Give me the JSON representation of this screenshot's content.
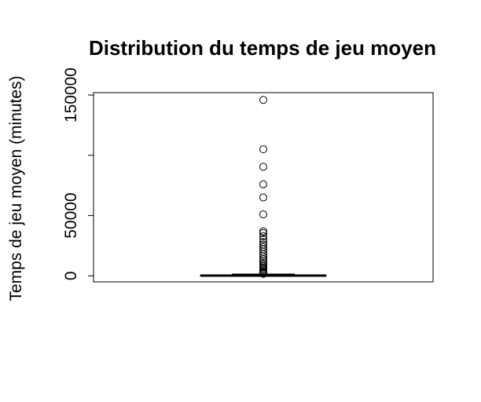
{
  "chart_data": {
    "type": "boxplot",
    "title": "Distribution du temps de jeu moyen",
    "xlabel": "",
    "ylabel": "Temps de jeu moyen (minutes)",
    "yticks": [
      0,
      50000,
      100000,
      150000
    ],
    "ytick_labels": [
      "0",
      "50000",
      "",
      "150000"
    ],
    "ylim": [
      -5000,
      152000
    ],
    "grid": false,
    "legend": "none",
    "box": {
      "min": 0,
      "q1": 0,
      "median": 250,
      "q3": 600,
      "max": 1500
    },
    "outliers": [
      146000,
      105000,
      90500,
      76000,
      65000,
      51000,
      37000,
      35500,
      33000,
      30500,
      28000,
      26000,
      24000,
      22000,
      20000,
      18000,
      16000,
      14000,
      12500,
      11000,
      9500,
      8000,
      7000,
      6000,
      5000,
      4000,
      3200,
      2500,
      2000,
      1700
    ],
    "colors": {
      "box": "#000000",
      "points": "#000000"
    }
  }
}
